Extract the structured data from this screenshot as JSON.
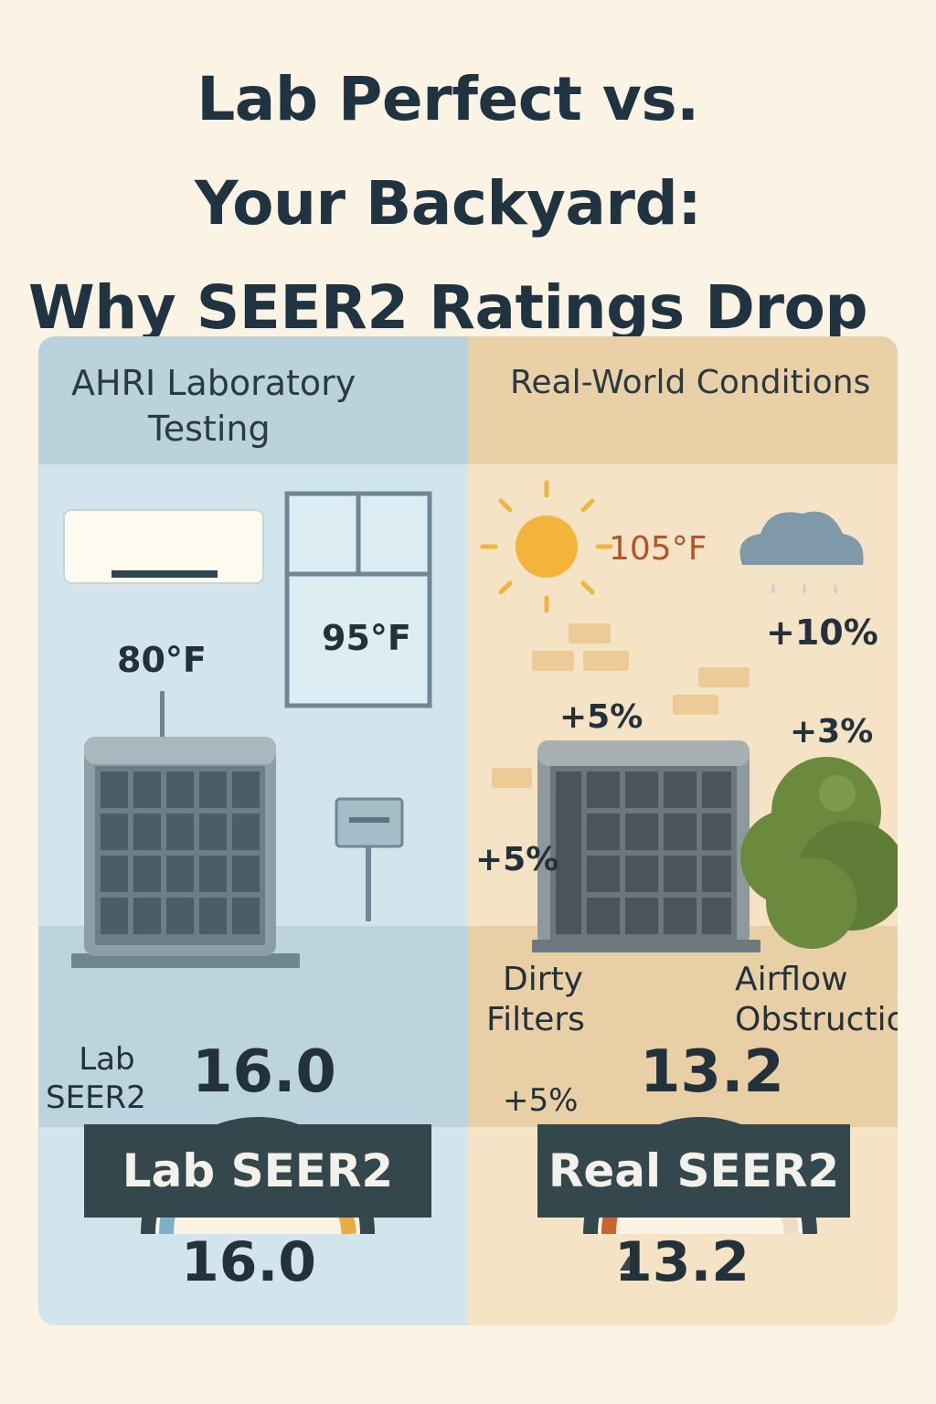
{
  "title": {
    "line1": "Lab Perfect vs.",
    "line2": "Your Backyard:",
    "line3": "Why SEER2 Ratings Drop"
  },
  "lab": {
    "header_line1": "AHRI Laboratory",
    "header_line2": "Testing",
    "indoor_temp": "80°F",
    "outdoor_temp": "95°F",
    "gauge_side_label_line1": "Lab",
    "gauge_side_label_line2": "SEER2",
    "gauge_value": "16.0",
    "banner": "Lab SEER2",
    "final_value": "16.0"
  },
  "real": {
    "header": "Real-World Conditions",
    "outdoor_temp": "105°F",
    "humidity_penalty": "+10%",
    "top_penalty": "+5%",
    "shrub_penalty": "+3%",
    "side_penalty": "+5%",
    "filters_label_line1": "Dirty",
    "filters_label_line2": "Filters",
    "airflow_label_line1": "Airflow",
    "airflow_label_line2": "Obstruction",
    "filters_penalty": "+5%",
    "gauge_value": "13.2",
    "banner": "Real SEER2",
    "final_value": "13.2"
  },
  "colors": {
    "lab_panel": "#d3e5ec",
    "real_panel": "#f5e3c6",
    "banner": "#33474d",
    "sun": "#f2b43b",
    "temp_hot": "#b4532c"
  }
}
